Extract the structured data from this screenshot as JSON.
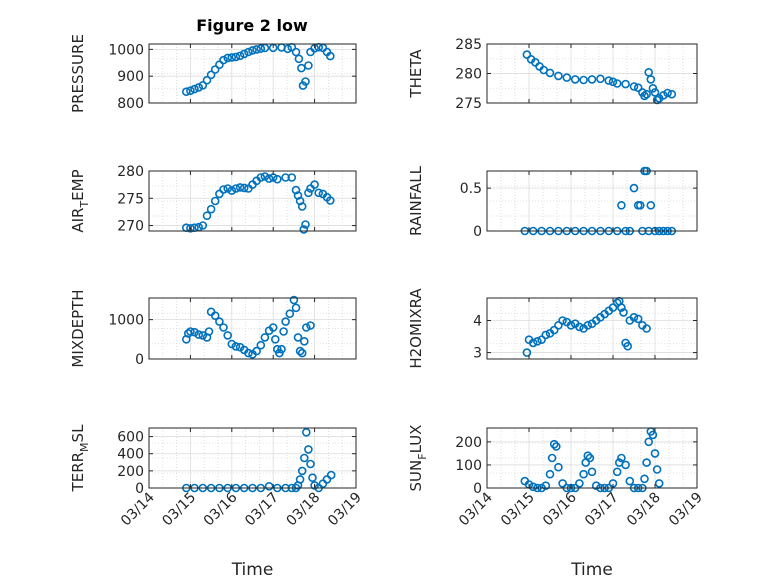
{
  "figure": {
    "title": "Figure 2 low",
    "xlabel": "Time",
    "xticks": [
      "03/14",
      "03/15",
      "03/16",
      "03/17",
      "03/18",
      "03/19"
    ],
    "marker_color": "#0072BD",
    "marker": "open-circle",
    "grid": true,
    "minor_grid": true
  },
  "chart_data": [
    {
      "type": "scatter",
      "ylabel": "PRESSURE",
      "ylim": [
        800,
        1020
      ],
      "yticks": [
        800,
        900,
        1000
      ],
      "yticklabels": [
        "800",
        "900",
        "1000"
      ],
      "x_range": [
        "03/14",
        "03/19"
      ],
      "points": [
        [
          0.9,
          842
        ],
        [
          1.0,
          846
        ],
        [
          1.1,
          852
        ],
        [
          1.2,
          858
        ],
        [
          1.3,
          866
        ],
        [
          1.4,
          885
        ],
        [
          1.5,
          905
        ],
        [
          1.6,
          925
        ],
        [
          1.7,
          943
        ],
        [
          1.8,
          960
        ],
        [
          1.9,
          968
        ],
        [
          2.0,
          970
        ],
        [
          2.1,
          972
        ],
        [
          2.2,
          976
        ],
        [
          2.3,
          983
        ],
        [
          2.4,
          990
        ],
        [
          2.5,
          996
        ],
        [
          2.6,
          1000
        ],
        [
          2.7,
          1003
        ],
        [
          2.8,
          1005
        ],
        [
          3.0,
          1006
        ],
        [
          3.2,
          1007
        ],
        [
          3.35,
          1002
        ],
        [
          3.45,
          1008
        ],
        [
          3.55,
          990
        ],
        [
          3.62,
          965
        ],
        [
          3.68,
          930
        ],
        [
          3.72,
          865
        ],
        [
          3.78,
          880
        ],
        [
          3.85,
          940
        ],
        [
          3.9,
          990
        ],
        [
          4.0,
          1004
        ],
        [
          4.1,
          1008
        ],
        [
          4.2,
          1006
        ],
        [
          4.3,
          990
        ],
        [
          4.38,
          975
        ]
      ]
    },
    {
      "type": "scatter",
      "ylabel": "THETA",
      "ylim": [
        275,
        285
      ],
      "yticks": [
        275,
        280,
        285
      ],
      "yticklabels": [
        "275",
        "280",
        "285"
      ],
      "x_range": [
        "03/14",
        "03/19"
      ],
      "points": [
        [
          0.95,
          283.2
        ],
        [
          1.05,
          282.4
        ],
        [
          1.15,
          281.9
        ],
        [
          1.25,
          281.2
        ],
        [
          1.35,
          280.6
        ],
        [
          1.5,
          280.1
        ],
        [
          1.7,
          279.6
        ],
        [
          1.9,
          279.3
        ],
        [
          2.1,
          279.0
        ],
        [
          2.3,
          278.9
        ],
        [
          2.5,
          279.0
        ],
        [
          2.7,
          279.1
        ],
        [
          2.9,
          278.8
        ],
        [
          3.0,
          278.6
        ],
        [
          3.1,
          278.3
        ],
        [
          3.3,
          278.2
        ],
        [
          3.5,
          277.8
        ],
        [
          3.6,
          277.6
        ],
        [
          3.7,
          276.8
        ],
        [
          3.75,
          276.2
        ],
        [
          3.8,
          276.5
        ],
        [
          3.85,
          280.2
        ],
        [
          3.9,
          279.0
        ],
        [
          3.95,
          277.5
        ],
        [
          4.0,
          276.8
        ],
        [
          4.05,
          275.5
        ],
        [
          4.1,
          275.8
        ],
        [
          4.2,
          276.3
        ],
        [
          4.3,
          276.7
        ],
        [
          4.4,
          276.5
        ]
      ]
    },
    {
      "type": "scatter",
      "ylabel": "AIR_TEMP",
      "ylim": [
        269,
        280
      ],
      "yticks": [
        270,
        275,
        280
      ],
      "yticklabels": [
        "270",
        "275",
        "280"
      ],
      "x_range": [
        "03/14",
        "03/19"
      ],
      "points": [
        [
          0.9,
          269.6
        ],
        [
          1.0,
          269.5
        ],
        [
          1.1,
          269.6
        ],
        [
          1.2,
          269.7
        ],
        [
          1.3,
          270.0
        ],
        [
          1.4,
          271.8
        ],
        [
          1.5,
          273.0
        ],
        [
          1.6,
          274.5
        ],
        [
          1.7,
          275.8
        ],
        [
          1.8,
          276.6
        ],
        [
          1.9,
          276.8
        ],
        [
          2.0,
          276.4
        ],
        [
          2.1,
          276.8
        ],
        [
          2.2,
          277.0
        ],
        [
          2.3,
          276.9
        ],
        [
          2.4,
          276.8
        ],
        [
          2.5,
          277.5
        ],
        [
          2.6,
          278.2
        ],
        [
          2.7,
          278.8
        ],
        [
          2.8,
          279.0
        ],
        [
          2.9,
          278.6
        ],
        [
          3.0,
          278.8
        ],
        [
          3.1,
          278.5
        ],
        [
          3.3,
          278.8
        ],
        [
          3.45,
          278.8
        ],
        [
          3.55,
          276.5
        ],
        [
          3.6,
          275.5
        ],
        [
          3.65,
          274.5
        ],
        [
          3.7,
          273.5
        ],
        [
          3.74,
          269.3
        ],
        [
          3.78,
          270.2
        ],
        [
          3.85,
          276.0
        ],
        [
          3.9,
          276.8
        ],
        [
          4.0,
          277.5
        ],
        [
          4.1,
          276.0
        ],
        [
          4.2,
          275.8
        ],
        [
          4.3,
          275.2
        ],
        [
          4.38,
          274.6
        ]
      ]
    },
    {
      "type": "scatter",
      "ylabel": "RAINFALL",
      "ylim": [
        0,
        0.7
      ],
      "yticks": [
        0,
        0.5
      ],
      "yticklabels": [
        "0",
        "0.5"
      ],
      "x_range": [
        "03/14",
        "03/19"
      ],
      "points": [
        [
          0.9,
          0
        ],
        [
          1.1,
          0
        ],
        [
          1.3,
          0
        ],
        [
          1.5,
          0
        ],
        [
          1.7,
          0
        ],
        [
          1.9,
          0
        ],
        [
          2.1,
          0
        ],
        [
          2.3,
          0
        ],
        [
          2.5,
          0
        ],
        [
          2.7,
          0
        ],
        [
          2.9,
          0
        ],
        [
          3.1,
          0
        ],
        [
          3.2,
          0.3
        ],
        [
          3.3,
          0
        ],
        [
          3.4,
          0
        ],
        [
          3.5,
          0.5
        ],
        [
          3.6,
          0.3
        ],
        [
          3.65,
          0.3
        ],
        [
          3.7,
          0
        ],
        [
          3.75,
          0.7
        ],
        [
          3.8,
          0.7
        ],
        [
          3.85,
          0
        ],
        [
          3.9,
          0.3
        ],
        [
          4.0,
          0
        ],
        [
          4.1,
          0
        ],
        [
          4.2,
          0
        ],
        [
          4.3,
          0
        ],
        [
          4.4,
          0
        ]
      ]
    },
    {
      "type": "scatter",
      "ylabel": "MIXDEPTH",
      "ylim": [
        0,
        1550
      ],
      "yticks": [
        0,
        1000
      ],
      "yticklabels": [
        "0",
        "1000"
      ],
      "x_range": [
        "03/14",
        "03/19"
      ],
      "points": [
        [
          0.9,
          500
        ],
        [
          0.95,
          650
        ],
        [
          1.0,
          700
        ],
        [
          1.1,
          680
        ],
        [
          1.2,
          620
        ],
        [
          1.3,
          600
        ],
        [
          1.4,
          550
        ],
        [
          1.45,
          700
        ],
        [
          1.5,
          1200
        ],
        [
          1.6,
          1100
        ],
        [
          1.7,
          950
        ],
        [
          1.8,
          800
        ],
        [
          1.9,
          600
        ],
        [
          2.0,
          380
        ],
        [
          2.1,
          320
        ],
        [
          2.2,
          300
        ],
        [
          2.3,
          230
        ],
        [
          2.4,
          150
        ],
        [
          2.5,
          120
        ],
        [
          2.6,
          200
        ],
        [
          2.7,
          350
        ],
        [
          2.8,
          550
        ],
        [
          2.9,
          720
        ],
        [
          3.0,
          800
        ],
        [
          3.05,
          500
        ],
        [
          3.1,
          250
        ],
        [
          3.15,
          150
        ],
        [
          3.2,
          250
        ],
        [
          3.25,
          700
        ],
        [
          3.3,
          950
        ],
        [
          3.4,
          1150
        ],
        [
          3.5,
          1500
        ],
        [
          3.55,
          1300
        ],
        [
          3.6,
          550
        ],
        [
          3.65,
          200
        ],
        [
          3.7,
          150
        ],
        [
          3.75,
          450
        ],
        [
          3.8,
          800
        ],
        [
          3.9,
          850
        ]
      ]
    },
    {
      "type": "scatter",
      "ylabel": "H2OMIXRA",
      "ylim": [
        2.8,
        4.7
      ],
      "yticks": [
        3,
        4
      ],
      "yticklabels": [
        "3",
        "4"
      ],
      "x_range": [
        "03/14",
        "03/19"
      ],
      "points": [
        [
          0.95,
          3.0
        ],
        [
          1.0,
          3.4
        ],
        [
          1.1,
          3.3
        ],
        [
          1.2,
          3.35
        ],
        [
          1.3,
          3.4
        ],
        [
          1.4,
          3.55
        ],
        [
          1.5,
          3.6
        ],
        [
          1.6,
          3.7
        ],
        [
          1.7,
          3.85
        ],
        [
          1.8,
          4.0
        ],
        [
          1.9,
          3.95
        ],
        [
          2.0,
          3.85
        ],
        [
          2.1,
          3.9
        ],
        [
          2.2,
          3.8
        ],
        [
          2.3,
          3.75
        ],
        [
          2.4,
          3.85
        ],
        [
          2.5,
          3.9
        ],
        [
          2.6,
          4.0
        ],
        [
          2.7,
          4.1
        ],
        [
          2.8,
          4.2
        ],
        [
          2.9,
          4.3
        ],
        [
          3.0,
          4.4
        ],
        [
          3.1,
          4.55
        ],
        [
          3.15,
          4.6
        ],
        [
          3.2,
          4.4
        ],
        [
          3.25,
          4.25
        ],
        [
          3.3,
          3.3
        ],
        [
          3.35,
          3.2
        ],
        [
          3.4,
          4.0
        ],
        [
          3.5,
          4.1
        ],
        [
          3.6,
          4.05
        ],
        [
          3.7,
          3.85
        ],
        [
          3.8,
          3.75
        ]
      ]
    },
    {
      "type": "scatter",
      "ylabel": "TERR_MSL",
      "ylim": [
        0,
        700
      ],
      "yticks": [
        0,
        200,
        400,
        600
      ],
      "yticklabels": [
        "0",
        "200",
        "400",
        "600"
      ],
      "x_range": [
        "03/14",
        "03/19"
      ],
      "points": [
        [
          0.9,
          0
        ],
        [
          1.1,
          0
        ],
        [
          1.3,
          0
        ],
        [
          1.5,
          0
        ],
        [
          1.7,
          0
        ],
        [
          1.9,
          0
        ],
        [
          2.1,
          0
        ],
        [
          2.3,
          0
        ],
        [
          2.5,
          0
        ],
        [
          2.7,
          0
        ],
        [
          2.9,
          20
        ],
        [
          3.1,
          0
        ],
        [
          3.3,
          0
        ],
        [
          3.45,
          0
        ],
        [
          3.55,
          0
        ],
        [
          3.6,
          30
        ],
        [
          3.65,
          100
        ],
        [
          3.7,
          200
        ],
        [
          3.75,
          350
        ],
        [
          3.8,
          650
        ],
        [
          3.85,
          450
        ],
        [
          3.9,
          280
        ],
        [
          3.95,
          120
        ],
        [
          4.0,
          30
        ],
        [
          4.1,
          0
        ],
        [
          4.2,
          50
        ],
        [
          4.3,
          100
        ],
        [
          4.4,
          150
        ]
      ]
    },
    {
      "type": "scatter",
      "ylabel": "SUN_FLUX",
      "ylim": [
        0,
        260
      ],
      "yticks": [
        0,
        100,
        200
      ],
      "yticklabels": [
        "0",
        "100",
        "200"
      ],
      "x_range": [
        "03/14",
        "03/19"
      ],
      "points": [
        [
          0.9,
          30
        ],
        [
          1.0,
          15
        ],
        [
          1.1,
          5
        ],
        [
          1.2,
          0
        ],
        [
          1.3,
          0
        ],
        [
          1.4,
          10
        ],
        [
          1.5,
          60
        ],
        [
          1.55,
          130
        ],
        [
          1.6,
          190
        ],
        [
          1.65,
          180
        ],
        [
          1.7,
          90
        ],
        [
          1.8,
          20
        ],
        [
          1.9,
          0
        ],
        [
          2.0,
          0
        ],
        [
          2.1,
          0
        ],
        [
          2.2,
          20
        ],
        [
          2.3,
          60
        ],
        [
          2.35,
          110
        ],
        [
          2.4,
          140
        ],
        [
          2.45,
          130
        ],
        [
          2.5,
          70
        ],
        [
          2.6,
          10
        ],
        [
          2.7,
          0
        ],
        [
          2.8,
          0
        ],
        [
          2.9,
          0
        ],
        [
          3.0,
          20
        ],
        [
          3.1,
          70
        ],
        [
          3.15,
          110
        ],
        [
          3.2,
          130
        ],
        [
          3.3,
          100
        ],
        [
          3.4,
          30
        ],
        [
          3.5,
          0
        ],
        [
          3.6,
          0
        ],
        [
          3.7,
          0
        ],
        [
          3.75,
          40
        ],
        [
          3.8,
          110
        ],
        [
          3.85,
          200
        ],
        [
          3.9,
          245
        ],
        [
          3.95,
          230
        ],
        [
          4.0,
          150
        ],
        [
          4.05,
          80
        ],
        [
          4.1,
          20
        ]
      ]
    }
  ]
}
